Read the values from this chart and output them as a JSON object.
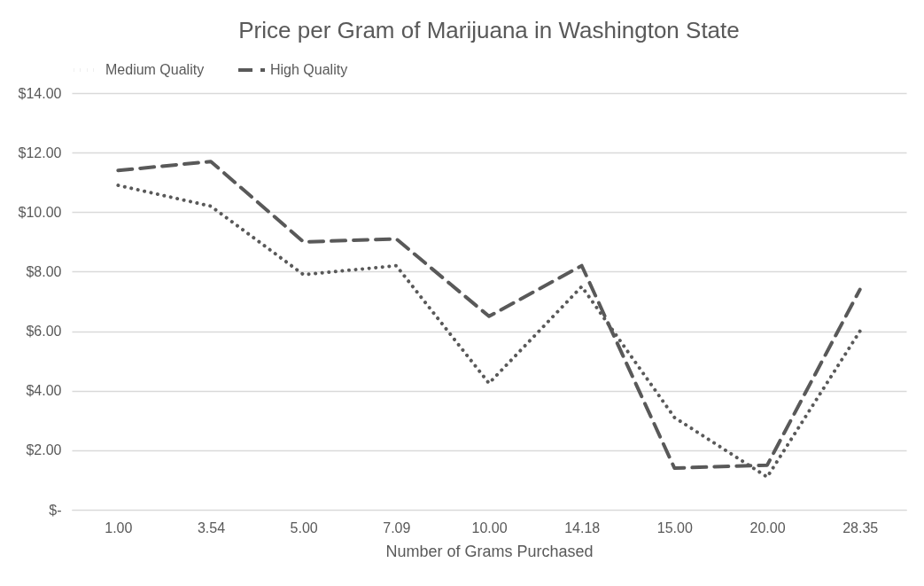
{
  "chart_data": {
    "type": "line",
    "title": "Price per Gram of Marijuana in Washington State",
    "xlabel": "Number of Grams Purchased",
    "categories": [
      "1.00",
      "3.54",
      "5.00",
      "7.09",
      "10.00",
      "14.18",
      "15.00",
      "20.00",
      "28.35"
    ],
    "series": [
      {
        "name": "Medium Quality",
        "color": "#595959",
        "line_style": "dotted",
        "values": [
          10.9,
          10.2,
          7.9,
          8.2,
          4.25,
          7.5,
          3.1,
          1.1,
          6.0
        ]
      },
      {
        "name": "High Quality",
        "color": "#595959",
        "line_style": "dashed",
        "values": [
          11.4,
          11.7,
          9.0,
          9.1,
          6.5,
          8.2,
          1.4,
          1.5,
          7.4
        ]
      }
    ],
    "ylim": [
      0,
      14
    ],
    "yticks": [
      {
        "value": 0,
        "label": "$-"
      },
      {
        "value": 2,
        "label": "$2.00"
      },
      {
        "value": 4,
        "label": "$4.00"
      },
      {
        "value": 6,
        "label": "$6.00"
      },
      {
        "value": 8,
        "label": "$8.00"
      },
      {
        "value": 10,
        "label": "$10.00"
      },
      {
        "value": 12,
        "label": "$12.00"
      },
      {
        "value": 14,
        "label": "$14.00"
      }
    ],
    "grid": "y",
    "legend": "top",
    "marker": "none"
  }
}
